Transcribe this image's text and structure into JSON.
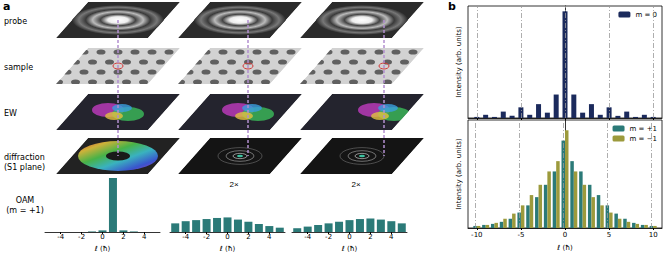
{
  "figure": {
    "panels": [
      {
        "label": "a",
        "rows": [
          "probe",
          "sample",
          "EW",
          "diffraction\n(S1 plane)"
        ]
      },
      {
        "label": "b"
      }
    ]
  },
  "chart_data": [
    {
      "type": "bar",
      "ylabel": "OAM\n(m = +1)",
      "xlabel": "ℓ (ħ)",
      "x": [
        -5,
        -4,
        -3,
        -2,
        -1,
        0,
        1,
        2,
        3,
        4,
        5
      ],
      "values": [
        0,
        0,
        0,
        0,
        0.01,
        0.03,
        1.0,
        0.03,
        0.01,
        0,
        0
      ],
      "color": "#2b7a78",
      "xlim": [
        -5.5,
        5.5
      ],
      "xticks": [
        -4,
        -2,
        0,
        2,
        4
      ],
      "ylim": [
        0,
        1
      ],
      "tick_labels": "x"
    },
    {
      "type": "bar",
      "xlabel": "ℓ (ħ)",
      "annotations": [
        "2×"
      ],
      "x": [
        -5,
        -4,
        -3,
        -2,
        -1,
        0,
        1,
        2,
        3,
        4,
        5
      ],
      "values": [
        0.16,
        0.2,
        0.22,
        0.24,
        0.26,
        0.27,
        0.23,
        0.19,
        0.15,
        0.11,
        0.08
      ],
      "color": "#2b7a78",
      "xlim": [
        -5.5,
        5.5
      ],
      "xticks": [
        -4,
        -2,
        0,
        2,
        4
      ],
      "ylim": [
        0,
        1
      ],
      "tick_labels": "x"
    },
    {
      "type": "bar",
      "xlabel": "ℓ (ħ)",
      "annotations": [
        "2×"
      ],
      "x": [
        -5,
        -4,
        -3,
        -2,
        -1,
        0,
        1,
        2,
        3,
        4,
        5
      ],
      "values": [
        0.07,
        0.1,
        0.13,
        0.16,
        0.19,
        0.22,
        0.24,
        0.25,
        0.23,
        0.2,
        0.16
      ],
      "color": "#2b7a78",
      "xlim": [
        -5.5,
        5.5
      ],
      "xticks": [
        -4,
        -2,
        0,
        2,
        4
      ],
      "ylim": [
        0,
        1
      ],
      "tick_labels": "x"
    },
    {
      "type": "bar",
      "ylabel": "Intensity (arb. units)",
      "x": [
        -10,
        -9,
        -8,
        -7,
        -6,
        -5,
        -4,
        -3,
        -2,
        -1,
        0,
        1,
        2,
        3,
        4,
        5,
        6,
        7,
        8,
        9,
        10
      ],
      "series": [
        {
          "name": "m = 0",
          "color": "#1b2a5c",
          "values": [
            0.01,
            0.03,
            0.01,
            0.06,
            0.02,
            0.1,
            0.03,
            0.13,
            0.05,
            0.22,
            1.0,
            0.22,
            0.05,
            0.13,
            0.03,
            0.1,
            0.02,
            0.06,
            0.01,
            0.03,
            0.01
          ]
        }
      ],
      "xlim": [
        -11,
        11
      ],
      "xticks": [
        -10,
        -5,
        0,
        5,
        10
      ],
      "ylim": [
        0,
        1.05
      ],
      "grid": true,
      "legend": "upper right",
      "tick_labels": false
    },
    {
      "type": "bar",
      "ylabel": "Intensity (arb. units)",
      "xlabel": "ℓ (ħ)",
      "x": [
        -10,
        -9,
        -8,
        -7,
        -6,
        -5,
        -4,
        -3,
        -2,
        -1,
        0,
        1,
        2,
        3,
        4,
        5,
        6,
        7,
        8,
        9,
        10
      ],
      "series": [
        {
          "name": "m = +1",
          "color": "#2b7a78",
          "values": [
            0.02,
            0.03,
            0.04,
            0.06,
            0.09,
            0.15,
            0.22,
            0.3,
            0.42,
            0.55,
            0.85,
            0.65,
            0.55,
            0.42,
            0.32,
            0.22,
            0.14,
            0.09,
            0.05,
            0.03,
            0.02
          ]
        },
        {
          "name": "m = −1",
          "color": "#9c9a3c",
          "values": [
            0.02,
            0.03,
            0.05,
            0.09,
            0.14,
            0.22,
            0.32,
            0.42,
            0.55,
            0.65,
            0.95,
            0.55,
            0.42,
            0.3,
            0.22,
            0.15,
            0.09,
            0.06,
            0.04,
            0.03,
            0.02
          ]
        }
      ],
      "xlim": [
        -11,
        11
      ],
      "xticks": [
        -10,
        -5,
        0,
        5,
        10
      ],
      "ylim": [
        0,
        1.05
      ],
      "grid": true,
      "legend": "upper right",
      "tick_labels": "x"
    }
  ]
}
